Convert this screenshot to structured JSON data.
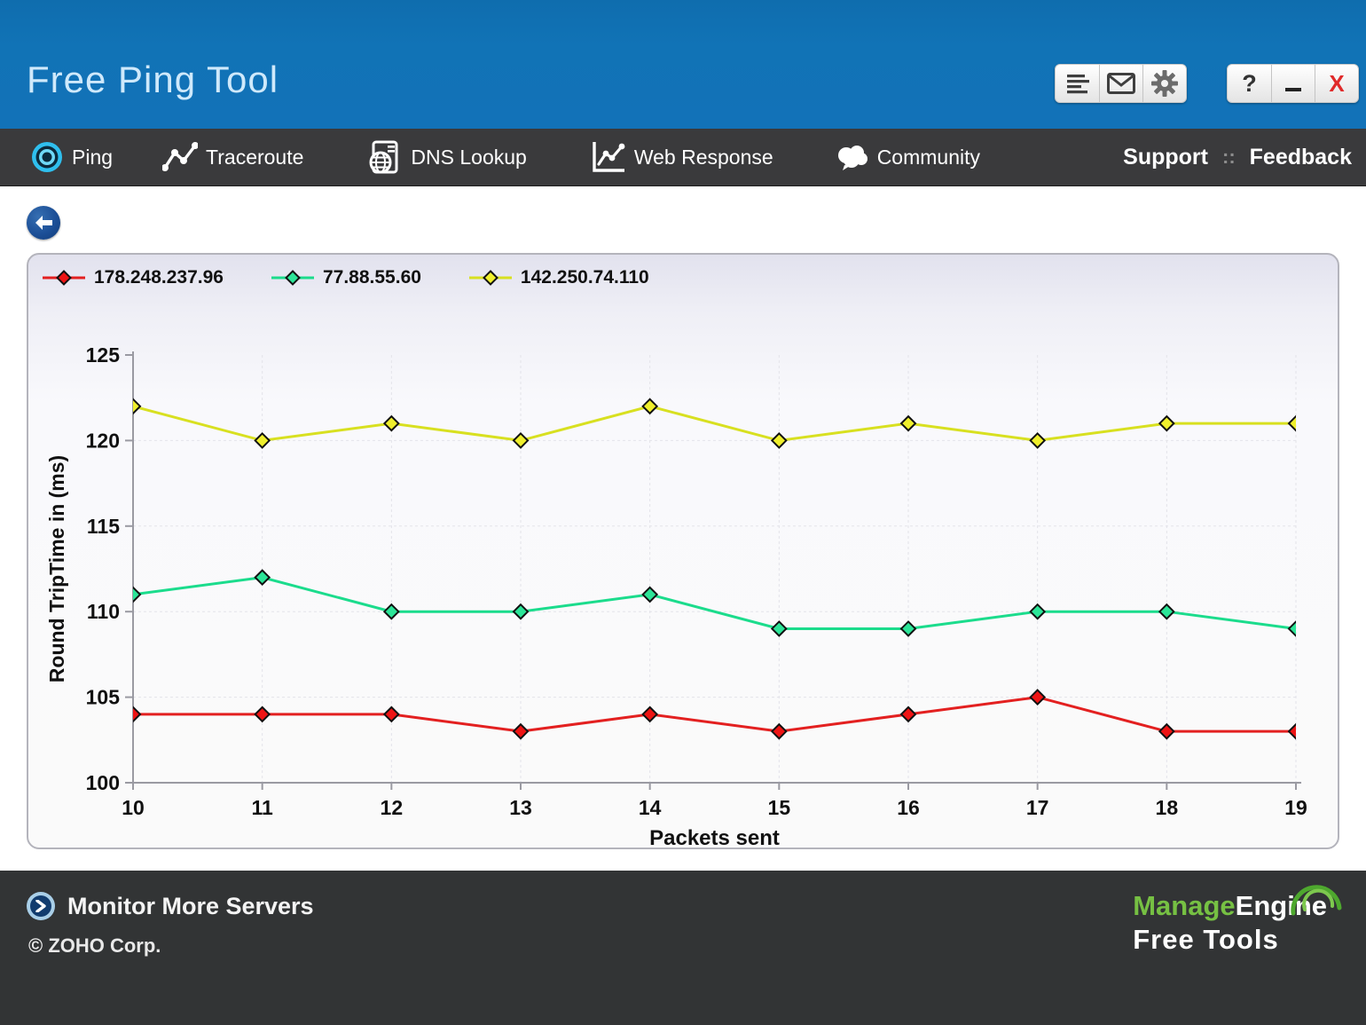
{
  "header": {
    "title": "Free Ping Tool",
    "toolbar_icons": [
      "report-list-icon",
      "mail-icon",
      "gear-icon"
    ],
    "window_controls": {
      "help_label": "?",
      "minimize_icon": "minimize-icon",
      "close_label": "X"
    }
  },
  "navbar": {
    "items": [
      {
        "label": "Ping",
        "icon": "ping-target-icon",
        "active": true
      },
      {
        "label": "Traceroute",
        "icon": "traceroute-path-icon"
      },
      {
        "label": "DNS Lookup",
        "icon": "dns-lookup-icon"
      },
      {
        "label": "Web Response",
        "icon": "web-response-icon"
      },
      {
        "label": "Community",
        "icon": "community-cloud-icon"
      }
    ],
    "right_items": {
      "support": "Support",
      "separator": "::",
      "feedback": "Feedback"
    }
  },
  "content": {
    "back_icon": "back-arrow-icon"
  },
  "chart_data": {
    "type": "line",
    "x": [
      10,
      11,
      12,
      13,
      14,
      15,
      16,
      17,
      18,
      19
    ],
    "series": [
      {
        "name": "178.248.237.96",
        "color": "#e32020",
        "marker": "#ee1414",
        "values": [
          104,
          104,
          104,
          103,
          104,
          103,
          104,
          105,
          103,
          103
        ]
      },
      {
        "name": "77.88.55.60",
        "color": "#1bdc8c",
        "marker": "#2ce598",
        "values": [
          111,
          112,
          110,
          110,
          111,
          109,
          109,
          110,
          110,
          109
        ]
      },
      {
        "name": "142.250.74.110",
        "color": "#d8e020",
        "marker": "#efef2d",
        "values": [
          122,
          120,
          121,
          120,
          122,
          120,
          121,
          120,
          121,
          121
        ]
      }
    ],
    "xlabel": "Packets sent",
    "ylabel": "Round TripTime in (ms)",
    "ylim": [
      100,
      125
    ],
    "yticks": [
      100,
      105,
      110,
      115,
      120,
      125
    ],
    "grid": true,
    "legend_position": "top-left",
    "axis_color": "#9a9aa2",
    "grid_color": "#e3e3e9",
    "tick_text_color": "#111111"
  },
  "footer": {
    "monitor_label": "Monitor More Servers",
    "monitor_icon": "chevron-right-circle-icon",
    "copyright": "© ZOHO Corp.",
    "logo": {
      "brand_green": "Manage",
      "brand_white": "Engine",
      "subtitle": "Free Tools"
    }
  }
}
